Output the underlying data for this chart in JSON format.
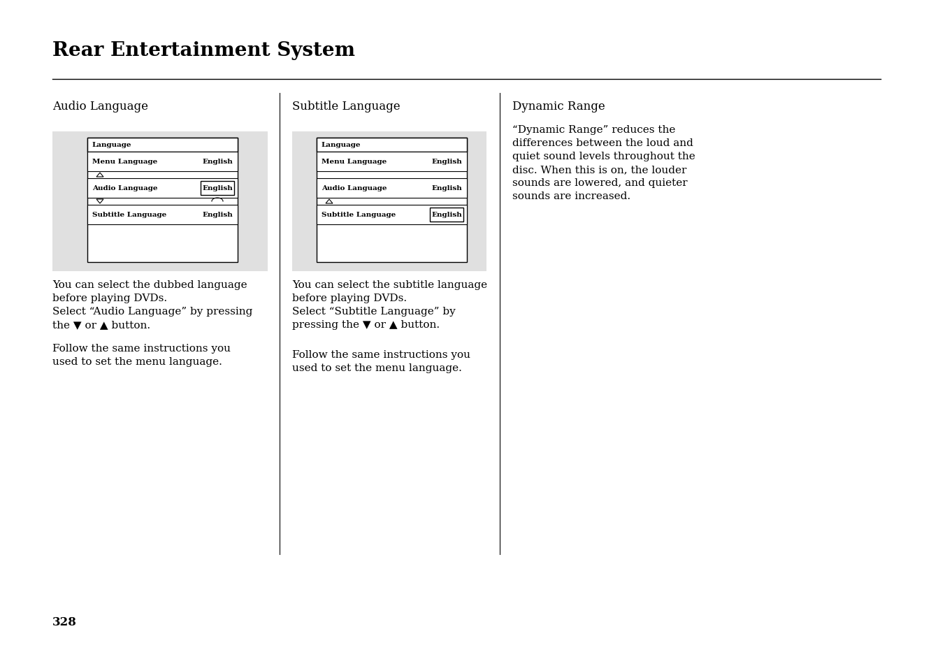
{
  "title": "Rear Entertainment System",
  "page_number": "328",
  "bg_color": "#ffffff",
  "section_bg": "#e0e0e0",
  "col1_header": "Audio Language",
  "col2_header": "Subtitle Language",
  "col3_header": "Dynamic Range",
  "col3_body": "“Dynamic Range” reduces the\ndifferences between the loud and\nquiet sound levels throughout the\ndisc. When this is on, the louder\nsounds are lowered, and quieter\nsounds are increased.",
  "col1_body_para1": "You can select the dubbed language\nbefore playing DVDs.\nSelect “Audio Language” by pressing\nthe ▼ or ▲ button.",
  "col1_body_para2": "Follow the same instructions you\nused to set the menu language.",
  "col2_body_para1": "You can select the subtitle language\nbefore playing DVDs.\nSelect “Subtitle Language” by\npressing the ▼ or ▲ button.",
  "col2_body_para2": "Follow the same instructions you\nused to set the menu language.",
  "screen_label": "Language",
  "row1_left": "Menu Language",
  "row1_right": "English",
  "row2_left": "Audio Language",
  "row2_right": "English",
  "row3_left": "Subtitle Language",
  "row3_right": "English",
  "divider_color": "#000000",
  "title_fontsize": 20,
  "header_fontsize": 12,
  "body_fontsize": 11,
  "screen_fontsize": 7.5
}
